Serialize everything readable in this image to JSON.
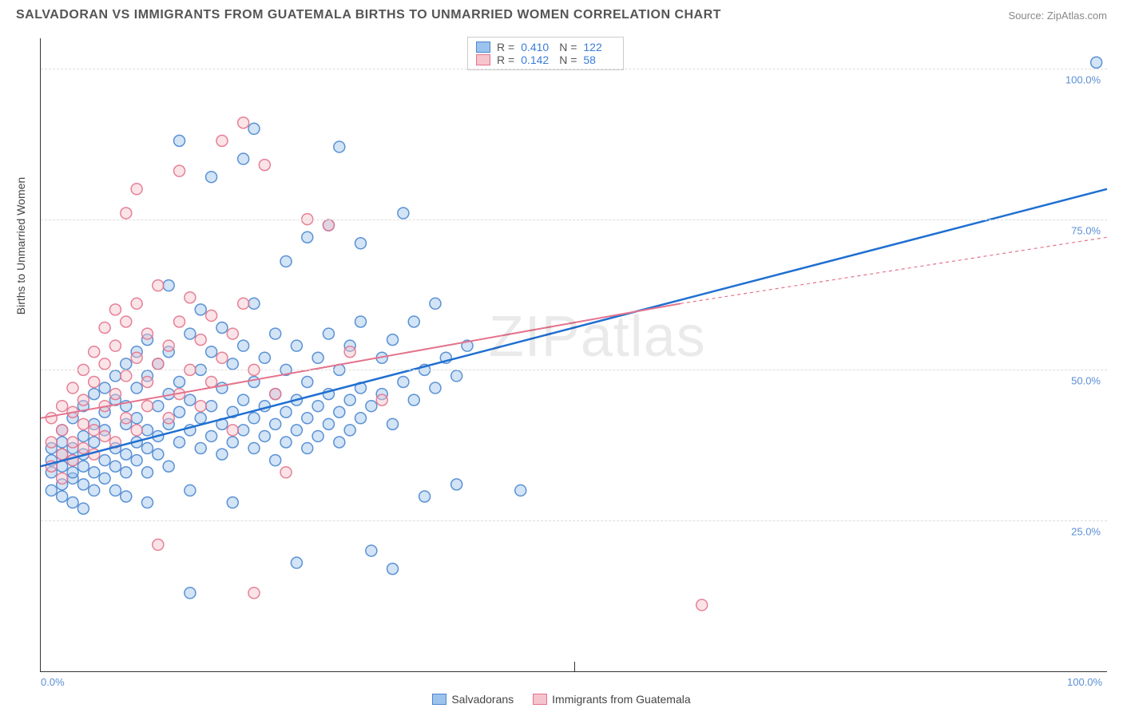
{
  "title": "SALVADORAN VS IMMIGRANTS FROM GUATEMALA BIRTHS TO UNMARRIED WOMEN CORRELATION CHART",
  "source_label": "Source: ZipAtlas.com",
  "y_axis_title": "Births to Unmarried Women",
  "watermark": "ZIPatlas",
  "chart": {
    "type": "scatter",
    "xlim": [
      0,
      100
    ],
    "ylim": [
      0,
      105
    ],
    "y_ticks": [
      25,
      50,
      75,
      100
    ],
    "y_tick_labels": [
      "25.0%",
      "50.0%",
      "75.0%",
      "100.0%"
    ],
    "x_ticks": [
      0,
      50,
      100
    ],
    "x_tick_labels": [
      "0.0%",
      "",
      "100.0%"
    ],
    "grid_color": "#dddddd",
    "axis_color": "#333333",
    "background_color": "#ffffff",
    "marker_radius": 7,
    "series": [
      {
        "name": "Salvadorans",
        "color_fill": "#9cc3ec",
        "color_stroke": "#4a86d0",
        "r_value": "0.410",
        "n_value": "122",
        "trend": {
          "x1": 0,
          "y1": 34,
          "x2": 100,
          "y2": 80,
          "color": "#1f6fd1",
          "width": 2.5,
          "dash": ""
        },
        "points": [
          [
            1,
            33
          ],
          [
            1,
            35
          ],
          [
            1,
            37
          ],
          [
            1,
            30
          ],
          [
            2,
            31
          ],
          [
            2,
            34
          ],
          [
            2,
            36
          ],
          [
            2,
            38
          ],
          [
            2,
            40
          ],
          [
            2,
            29
          ],
          [
            3,
            32
          ],
          [
            3,
            35
          ],
          [
            3,
            37
          ],
          [
            3,
            33
          ],
          [
            3,
            42
          ],
          [
            3,
            28
          ],
          [
            4,
            34
          ],
          [
            4,
            36
          ],
          [
            4,
            39
          ],
          [
            4,
            31
          ],
          [
            4,
            44
          ],
          [
            4,
            27
          ],
          [
            5,
            33
          ],
          [
            5,
            38
          ],
          [
            5,
            41
          ],
          [
            5,
            30
          ],
          [
            5,
            46
          ],
          [
            6,
            35
          ],
          [
            6,
            40
          ],
          [
            6,
            43
          ],
          [
            6,
            32
          ],
          [
            6,
            47
          ],
          [
            7,
            34
          ],
          [
            7,
            37
          ],
          [
            7,
            45
          ],
          [
            7,
            30
          ],
          [
            7,
            49
          ],
          [
            8,
            36
          ],
          [
            8,
            41
          ],
          [
            8,
            44
          ],
          [
            8,
            33
          ],
          [
            8,
            51
          ],
          [
            8,
            29
          ],
          [
            9,
            38
          ],
          [
            9,
            42
          ],
          [
            9,
            47
          ],
          [
            9,
            35
          ],
          [
            9,
            53
          ],
          [
            10,
            37
          ],
          [
            10,
            40
          ],
          [
            10,
            49
          ],
          [
            10,
            33
          ],
          [
            10,
            55
          ],
          [
            10,
            28
          ],
          [
            11,
            39
          ],
          [
            11,
            44
          ],
          [
            11,
            51
          ],
          [
            11,
            36
          ],
          [
            12,
            41
          ],
          [
            12,
            46
          ],
          [
            12,
            53
          ],
          [
            12,
            34
          ],
          [
            12,
            64
          ],
          [
            13,
            38
          ],
          [
            13,
            43
          ],
          [
            13,
            48
          ],
          [
            13,
            88
          ],
          [
            14,
            40
          ],
          [
            14,
            45
          ],
          [
            14,
            56
          ],
          [
            14,
            30
          ],
          [
            14,
            13
          ],
          [
            15,
            42
          ],
          [
            15,
            37
          ],
          [
            15,
            50
          ],
          [
            15,
            60
          ],
          [
            16,
            44
          ],
          [
            16,
            39
          ],
          [
            16,
            53
          ],
          [
            16,
            82
          ],
          [
            17,
            41
          ],
          [
            17,
            36
          ],
          [
            17,
            47
          ],
          [
            17,
            57
          ],
          [
            18,
            43
          ],
          [
            18,
            38
          ],
          [
            18,
            51
          ],
          [
            18,
            28
          ],
          [
            19,
            40
          ],
          [
            19,
            45
          ],
          [
            19,
            54
          ],
          [
            19,
            85
          ],
          [
            20,
            42
          ],
          [
            20,
            37
          ],
          [
            20,
            48
          ],
          [
            20,
            61
          ],
          [
            20,
            90
          ],
          [
            21,
            44
          ],
          [
            21,
            39
          ],
          [
            21,
            52
          ],
          [
            22,
            41
          ],
          [
            22,
            46
          ],
          [
            22,
            56
          ],
          [
            22,
            35
          ],
          [
            23,
            43
          ],
          [
            23,
            38
          ],
          [
            23,
            50
          ],
          [
            23,
            68
          ],
          [
            24,
            45
          ],
          [
            24,
            40
          ],
          [
            24,
            54
          ],
          [
            24,
            18
          ],
          [
            25,
            42
          ],
          [
            25,
            37
          ],
          [
            25,
            48
          ],
          [
            25,
            72
          ],
          [
            26,
            44
          ],
          [
            26,
            39
          ],
          [
            26,
            52
          ],
          [
            27,
            41
          ],
          [
            27,
            46
          ],
          [
            27,
            56
          ],
          [
            27,
            74
          ],
          [
            28,
            43
          ],
          [
            28,
            38
          ],
          [
            28,
            50
          ],
          [
            28,
            87
          ],
          [
            29,
            45
          ],
          [
            29,
            40
          ],
          [
            29,
            54
          ],
          [
            30,
            42
          ],
          [
            30,
            47
          ],
          [
            30,
            58
          ],
          [
            30,
            71
          ],
          [
            31,
            44
          ],
          [
            31,
            20
          ],
          [
            32,
            46
          ],
          [
            32,
            52
          ],
          [
            33,
            41
          ],
          [
            33,
            55
          ],
          [
            33,
            17
          ],
          [
            34,
            48
          ],
          [
            34,
            76
          ],
          [
            35,
            45
          ],
          [
            35,
            58
          ],
          [
            36,
            50
          ],
          [
            36,
            29
          ],
          [
            37,
            47
          ],
          [
            37,
            61
          ],
          [
            38,
            52
          ],
          [
            39,
            49
          ],
          [
            39,
            31
          ],
          [
            40,
            54
          ],
          [
            45,
            30
          ],
          [
            99,
            101
          ]
        ]
      },
      {
        "name": "Immigrants from Guatemala",
        "color_fill": "#f5c4cd",
        "color_stroke": "#e4738c",
        "r_value": "0.142",
        "n_value": "58",
        "trend": {
          "x1": 0,
          "y1": 42,
          "x2": 60,
          "y2": 61,
          "color": "#e4738c",
          "width": 2,
          "dash": ""
        },
        "trend_ext": {
          "x1": 60,
          "y1": 61,
          "x2": 100,
          "y2": 72,
          "color": "#e4738c",
          "width": 1.2,
          "dash": "4,4"
        },
        "points": [
          [
            1,
            34
          ],
          [
            1,
            38
          ],
          [
            1,
            42
          ],
          [
            2,
            36
          ],
          [
            2,
            40
          ],
          [
            2,
            44
          ],
          [
            2,
            32
          ],
          [
            3,
            38
          ],
          [
            3,
            43
          ],
          [
            3,
            47
          ],
          [
            3,
            35
          ],
          [
            4,
            41
          ],
          [
            4,
            45
          ],
          [
            4,
            50
          ],
          [
            4,
            37
          ],
          [
            5,
            40
          ],
          [
            5,
            48
          ],
          [
            5,
            53
          ],
          [
            5,
            36
          ],
          [
            6,
            44
          ],
          [
            6,
            51
          ],
          [
            6,
            57
          ],
          [
            6,
            39
          ],
          [
            7,
            46
          ],
          [
            7,
            54
          ],
          [
            7,
            60
          ],
          [
            7,
            38
          ],
          [
            8,
            49
          ],
          [
            8,
            58
          ],
          [
            8,
            42
          ],
          [
            8,
            76
          ],
          [
            9,
            52
          ],
          [
            9,
            61
          ],
          [
            9,
            40
          ],
          [
            9,
            80
          ],
          [
            10,
            48
          ],
          [
            10,
            56
          ],
          [
            10,
            44
          ],
          [
            11,
            51
          ],
          [
            11,
            64
          ],
          [
            11,
            21
          ],
          [
            12,
            54
          ],
          [
            12,
            42
          ],
          [
            13,
            58
          ],
          [
            13,
            46
          ],
          [
            13,
            83
          ],
          [
            14,
            50
          ],
          [
            14,
            62
          ],
          [
            15,
            55
          ],
          [
            15,
            44
          ],
          [
            16,
            59
          ],
          [
            16,
            48
          ],
          [
            17,
            52
          ],
          [
            17,
            88
          ],
          [
            18,
            56
          ],
          [
            18,
            40
          ],
          [
            19,
            61
          ],
          [
            19,
            91
          ],
          [
            20,
            50
          ],
          [
            20,
            13
          ],
          [
            21,
            84
          ],
          [
            22,
            46
          ],
          [
            23,
            33
          ],
          [
            25,
            75
          ],
          [
            27,
            74
          ],
          [
            29,
            53
          ],
          [
            32,
            45
          ],
          [
            62,
            11
          ]
        ]
      }
    ]
  },
  "legend_top": {
    "r_label": "R =",
    "n_label": "N ="
  },
  "bottom_legend": [
    {
      "label": "Salvadorans",
      "fill": "#9cc3ec",
      "stroke": "#4a86d0"
    },
    {
      "label": "Immigrants from Guatemala",
      "fill": "#f5c4cd",
      "stroke": "#e4738c"
    }
  ]
}
